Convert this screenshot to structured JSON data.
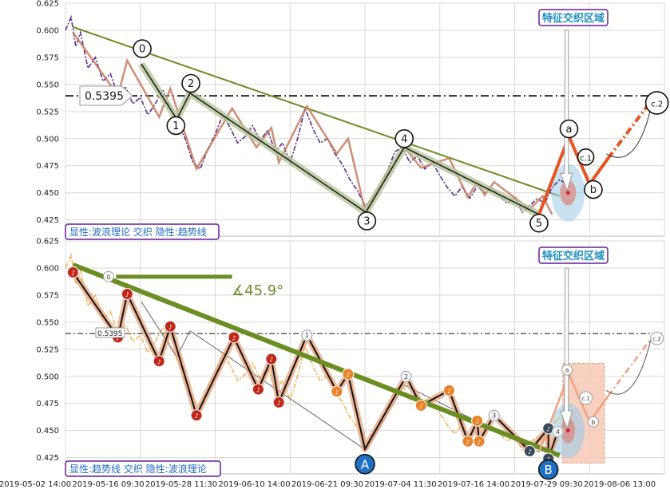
{
  "chart_data": [
    {
      "type": "line",
      "panel": "top",
      "ylim": [
        0.41,
        0.625
      ],
      "yticks": [
        0.425,
        0.45,
        0.475,
        0.5,
        0.525,
        0.55,
        0.575,
        0.6,
        0.625
      ],
      "grid": true,
      "price_path": [
        [
          0.0,
          0.6
        ],
        [
          0.3,
          0.612
        ],
        [
          0.55,
          0.585
        ],
        [
          0.8,
          0.598
        ],
        [
          1.2,
          0.565
        ],
        [
          1.6,
          0.575
        ],
        [
          2.0,
          0.553
        ],
        [
          2.4,
          0.56
        ],
        [
          2.8,
          0.54
        ],
        [
          3.2,
          0.548
        ],
        [
          3.6,
          0.532
        ],
        [
          4.0,
          0.538
        ],
        [
          4.4,
          0.522
        ],
        [
          4.8,
          0.532
        ],
        [
          5.2,
          0.545
        ],
        [
          5.6,
          0.528
        ],
        [
          6.0,
          0.514
        ],
        [
          6.4,
          0.5
        ],
        [
          6.8,
          0.478
        ],
        [
          7.2,
          0.472
        ],
        [
          7.6,
          0.49
        ],
        [
          8.0,
          0.504
        ],
        [
          8.4,
          0.522
        ],
        [
          8.8,
          0.51
        ],
        [
          9.2,
          0.496
        ],
        [
          9.6,
          0.502
        ],
        [
          10.0,
          0.512
        ],
        [
          10.4,
          0.498
        ],
        [
          10.8,
          0.508
        ],
        [
          11.2,
          0.488
        ],
        [
          11.6,
          0.496
        ],
        [
          12.0,
          0.478
        ],
        [
          12.4,
          0.5
        ],
        [
          12.8,
          0.528
        ],
        [
          13.2,
          0.51
        ],
        [
          13.6,
          0.496
        ],
        [
          14.0,
          0.5
        ],
        [
          14.4,
          0.486
        ],
        [
          14.8,
          0.476
        ],
        [
          15.2,
          0.462
        ],
        [
          15.6,
          0.452
        ],
        [
          16.0,
          0.438
        ],
        [
          16.4,
          0.445
        ],
        [
          16.8,
          0.456
        ],
        [
          17.2,
          0.47
        ],
        [
          17.6,
          0.488
        ],
        [
          18.0,
          0.492
        ],
        [
          18.4,
          0.478
        ],
        [
          18.8,
          0.484
        ],
        [
          19.2,
          0.472
        ],
        [
          19.6,
          0.478
        ],
        [
          20.0,
          0.466
        ],
        [
          20.4,
          0.455
        ],
        [
          20.8,
          0.447
        ],
        [
          21.2,
          0.456
        ],
        [
          21.6,
          0.445
        ],
        [
          22.0,
          0.456
        ],
        [
          22.4,
          0.45
        ],
        [
          22.8,
          0.454
        ],
        [
          23.2,
          0.447
        ],
        [
          23.6,
          0.44
        ],
        [
          24.0,
          0.446
        ],
        [
          24.4,
          0.432
        ],
        [
          24.8,
          0.438
        ],
        [
          25.2,
          0.445
        ],
        [
          25.6,
          0.44
        ],
        [
          26.0,
          0.455
        ],
        [
          26.4,
          0.462
        ],
        [
          26.8,
          0.458
        ]
      ],
      "labels": {
        "hline_value": "0.5395",
        "region_title": "特征交织区域",
        "caption": "显性:波浪理论 交织 隐性:趋势线"
      },
      "wave_points": [
        {
          "label": "0",
          "x": 4.05,
          "y": 0.569
        },
        {
          "label": "1",
          "x": 5.95,
          "y": 0.518
        },
        {
          "label": "2",
          "x": 6.65,
          "y": 0.542
        },
        {
          "label": "3",
          "x": 16.05,
          "y": 0.432
        },
        {
          "label": "4",
          "x": 18.1,
          "y": 0.492
        },
        {
          "label": "5",
          "x": 25.3,
          "y": 0.43
        },
        {
          "label": "a",
          "x": 26.9,
          "y": 0.502
        },
        {
          "label": "b",
          "x": 28.0,
          "y": 0.458
        },
        {
          "label": "c.1",
          "x": 27.7,
          "y": 0.475
        },
        {
          "label": "c.2",
          "x": 31.5,
          "y": 0.535
        }
      ]
    },
    {
      "type": "line",
      "panel": "bottom",
      "ylim": [
        0.41,
        0.625
      ],
      "yticks": [
        0.425,
        0.45,
        0.475,
        0.5,
        0.525,
        0.55,
        0.575,
        0.6,
        0.625
      ],
      "grid": true,
      "xticks": [
        "2019-05-02 14:00",
        "2019-05-16 09:30",
        "2019-05-28 11:30",
        "2019-06-10 14:00",
        "2019-06-21 09:30",
        "2019-07-04 11:30",
        "2019-07-16 14:00",
        "2019-07-29 09:30",
        "2019-08-06 13:00"
      ],
      "labels": {
        "angle": "∡45.9°",
        "hline_value": "0.5395",
        "region_title": "特征交织区域",
        "caption": "显性:趋势线 交织 隐性:波浪理论",
        "big_A": "A",
        "big_B": "B",
        "small_wave": [
          "0",
          "1",
          "2",
          "3",
          "4",
          "a",
          "b",
          "c.1",
          "c.2"
        ]
      },
      "nodes": [
        {
          "x": 0.4,
          "y": 0.596,
          "c": "red"
        },
        {
          "x": 2.8,
          "y": 0.536,
          "c": "red"
        },
        {
          "x": 3.3,
          "y": 0.576,
          "c": "red"
        },
        {
          "x": 5.0,
          "y": 0.514,
          "c": "red"
        },
        {
          "x": 5.6,
          "y": 0.546,
          "c": "red"
        },
        {
          "x": 7.0,
          "y": 0.464,
          "c": "red"
        },
        {
          "x": 9.0,
          "y": 0.536,
          "c": "red"
        },
        {
          "x": 10.3,
          "y": 0.488,
          "c": "red"
        },
        {
          "x": 11.0,
          "y": 0.516,
          "c": "red"
        },
        {
          "x": 11.4,
          "y": 0.476,
          "c": "red"
        },
        {
          "x": 12.9,
          "y": 0.538,
          "c": "blue"
        },
        {
          "x": 14.5,
          "y": 0.486,
          "c": "orange"
        },
        {
          "x": 15.1,
          "y": 0.502,
          "c": "orange"
        },
        {
          "x": 18.2,
          "y": 0.5,
          "c": "blue"
        },
        {
          "x": 19.0,
          "y": 0.473,
          "c": "orange"
        },
        {
          "x": 20.5,
          "y": 0.487,
          "c": "orange"
        },
        {
          "x": 21.5,
          "y": 0.44,
          "c": "orange"
        },
        {
          "x": 22.0,
          "y": 0.459,
          "c": "orange"
        },
        {
          "x": 22.1,
          "y": 0.44,
          "c": "orange"
        },
        {
          "x": 22.9,
          "y": 0.464,
          "c": "blue"
        },
        {
          "x": 24.8,
          "y": 0.431,
          "c": "dark"
        },
        {
          "x": 25.8,
          "y": 0.452,
          "c": "dark"
        },
        {
          "x": 26.3,
          "y": 0.449,
          "c": "blue"
        },
        {
          "x": 25.8,
          "y": 0.424,
          "c": "dark"
        }
      ]
    }
  ],
  "ui": {
    "x_first": "2019-05-02 14:00"
  }
}
